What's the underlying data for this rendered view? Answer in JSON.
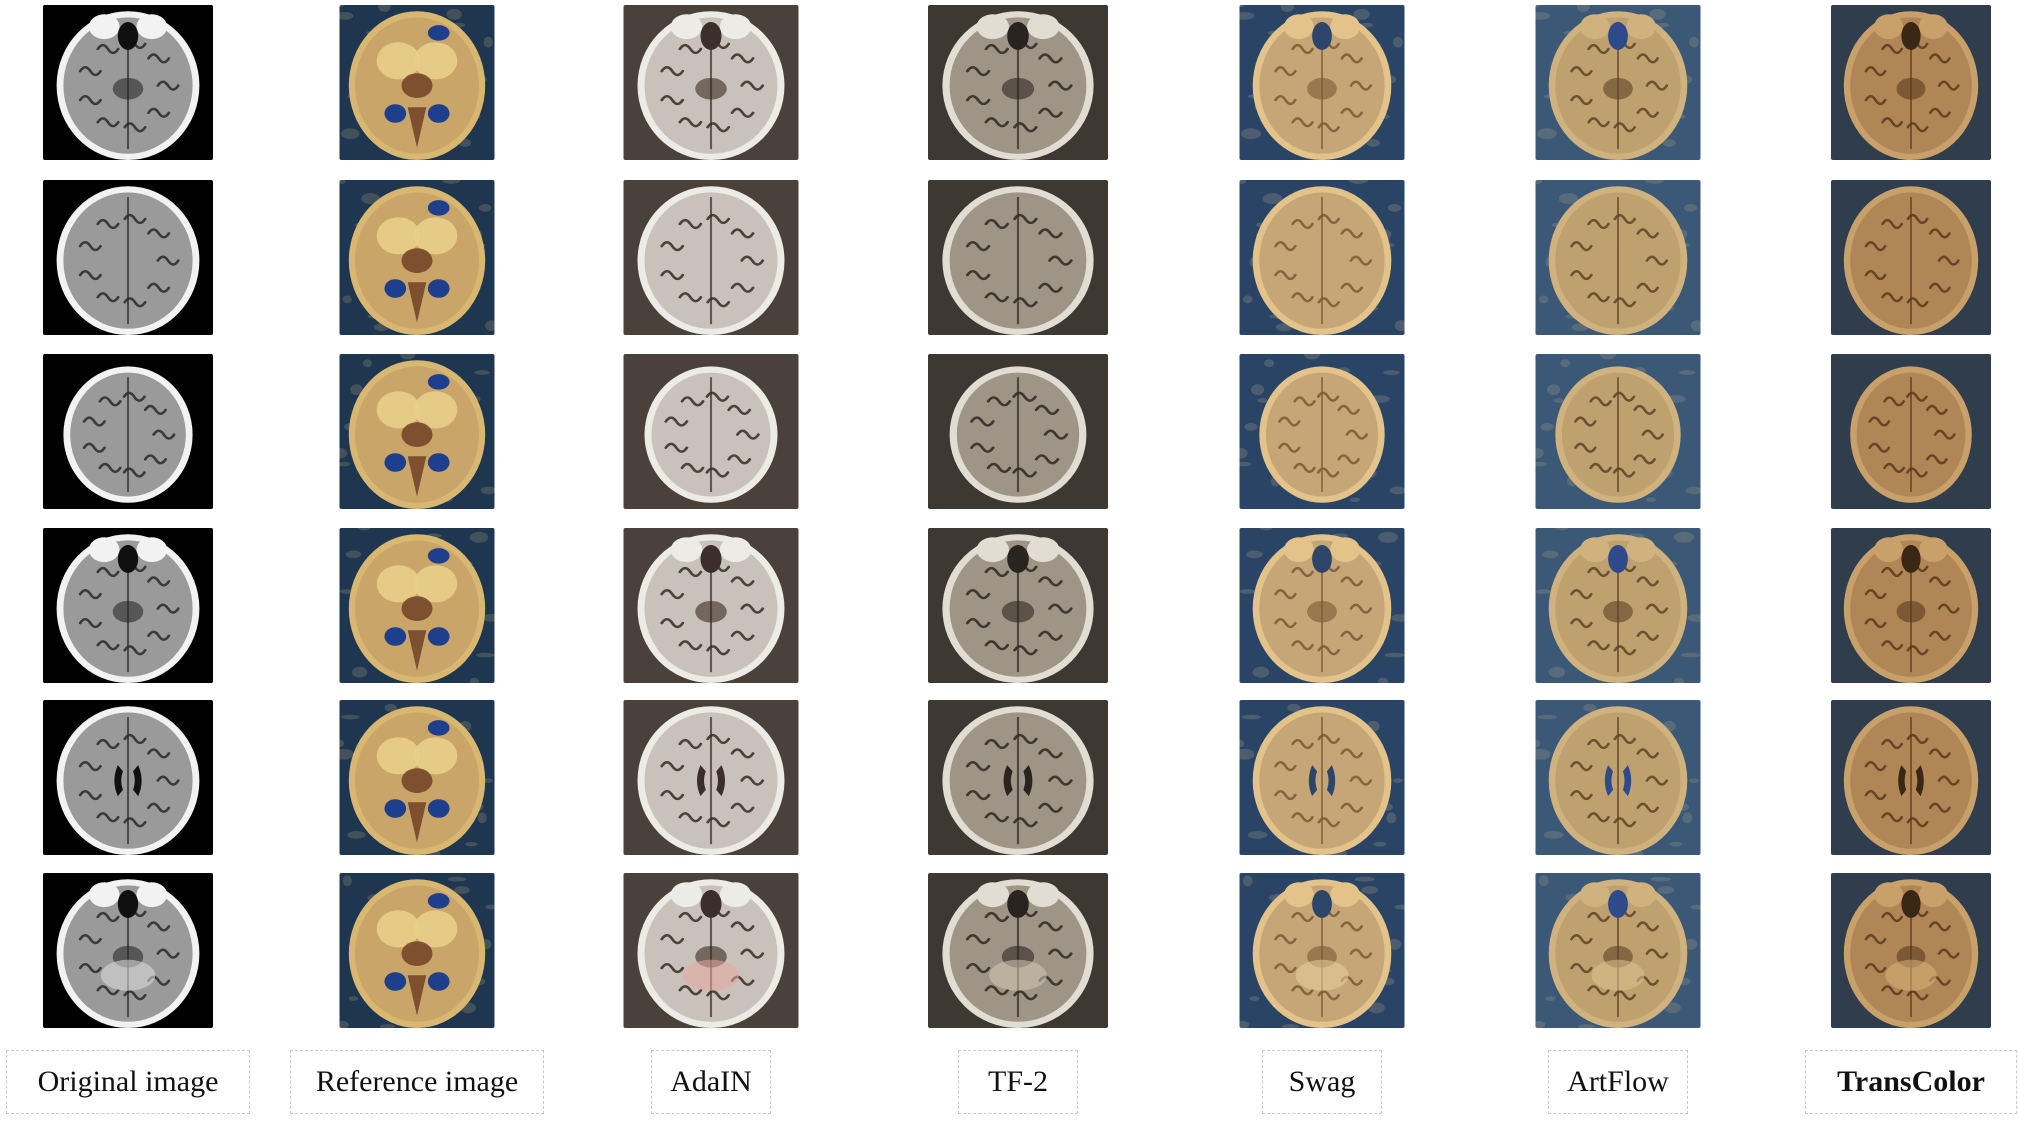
{
  "figure": {
    "columns": [
      {
        "key": "original",
        "label": "Original image",
        "bold": false,
        "style": "mri"
      },
      {
        "key": "reference",
        "label": "Reference image",
        "bold": false,
        "style": "reference"
      },
      {
        "key": "adain",
        "label": "AdaIN",
        "bold": false,
        "style": "adain"
      },
      {
        "key": "tf2",
        "label": "TF-2",
        "bold": false,
        "style": "tf2"
      },
      {
        "key": "swag",
        "label": "Swag",
        "bold": false,
        "style": "swag"
      },
      {
        "key": "artflow",
        "label": "ArtFlow",
        "bold": false,
        "style": "artflow"
      },
      {
        "key": "transcolor",
        "label": "TransColor",
        "bold": true,
        "style": "transcolor"
      }
    ],
    "rows": [
      {
        "slice": "skull-base-orbits"
      },
      {
        "slice": "upper-cortex"
      },
      {
        "slice": "vertex"
      },
      {
        "slice": "midbrain-orbits"
      },
      {
        "slice": "lateral-ventricles"
      },
      {
        "slice": "posterior-fossa"
      }
    ],
    "palettes": {
      "mri": {
        "bg": "#000000",
        "skull": "#f2f2f2",
        "brain": "#9a9a9a",
        "gyri": "#2a2a2a",
        "dark": "#101010",
        "accent": "#e0e0e0"
      },
      "reference": {
        "bg": "#1e3650",
        "skull": "#d8b870",
        "brain": "#c9a56a",
        "gyri": "#6b3b20",
        "dark": "#1d3f8c",
        "accent": "#e8cf8a"
      },
      "adain": {
        "bg": "#4a413a",
        "skull": "#ecebe6",
        "brain": "#c8c2ba",
        "gyri": "#3a2a22",
        "dark": "#3c2e28",
        "accent": "#e8a8a0"
      },
      "tf2": {
        "bg": "#3e3833",
        "skull": "#e2ddd2",
        "brain": "#9e9586",
        "gyri": "#2e2822",
        "dark": "#2a2420",
        "accent": "#d2c8b4"
      },
      "swag": {
        "bg": "#2a4466",
        "skull": "#e3c38a",
        "brain": "#c6a677",
        "gyri": "#7a5a36",
        "dark": "#2d4568",
        "accent": "#e8d29c"
      },
      "artflow": {
        "bg": "#3b5876",
        "skull": "#cfb27e",
        "brain": "#bfa170",
        "gyri": "#5e4326",
        "dark": "#2e4a8a",
        "accent": "#dcc490"
      },
      "transcolor": {
        "bg": "#2f3d4c",
        "skull": "#c8a06a",
        "brain": "#b08656",
        "gyri": "#5a3a1e",
        "dark": "#3b2716",
        "accent": "#d9b27c"
      }
    }
  }
}
